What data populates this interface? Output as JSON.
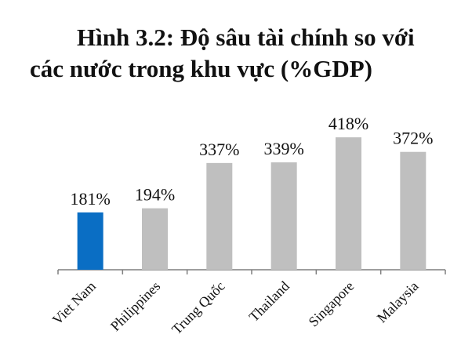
{
  "chart_data": {
    "type": "bar",
    "title_line1": "Hình 3.2: Độ sâu tài chính so với",
    "title_line2": "các nước trong khu vực (%GDP)",
    "categories": [
      "Viet Nam",
      "Philippines",
      "Trung Quốc",
      "Thailand",
      "Singapore",
      "Malaysia"
    ],
    "values": [
      181,
      194,
      337,
      339,
      418,
      372
    ],
    "value_labels": [
      "181%",
      "194%",
      "337%",
      "339%",
      "418%",
      "372%"
    ],
    "ylim": [
      0,
      520
    ],
    "grid": false,
    "highlight_category": "Viet Nam",
    "colors": {
      "highlight": "#0a6ec4",
      "default": "#bfbfbf",
      "axis": "#7f7f7f"
    }
  }
}
